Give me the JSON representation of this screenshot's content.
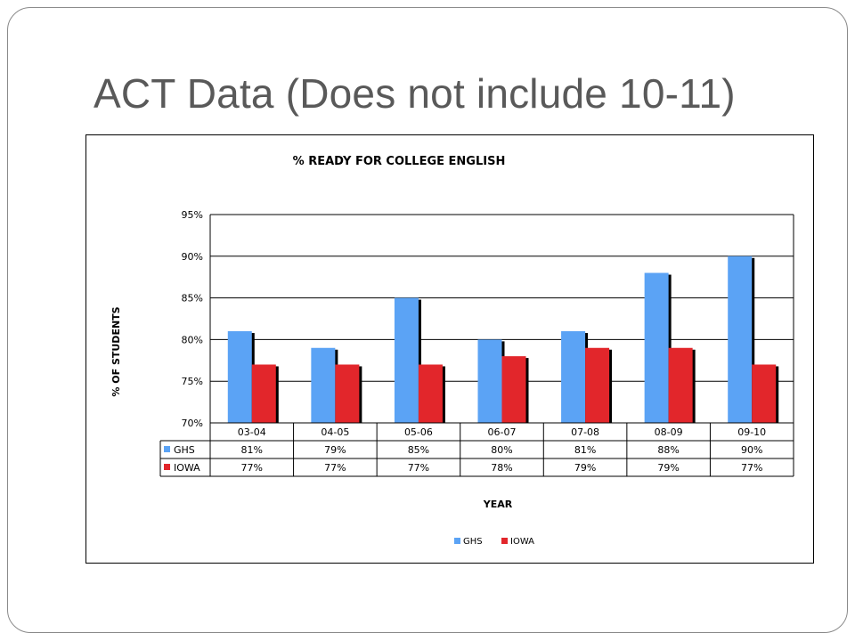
{
  "slide": {
    "title": "ACT Data (Does not include 10-11)"
  },
  "chart_data": {
    "type": "bar",
    "title": "% READY FOR COLLEGE ENGLISH",
    "xlabel": "YEAR",
    "ylabel": "% OF STUDENTS",
    "categories": [
      "03-04",
      "04-05",
      "05-06",
      "06-07",
      "07-08",
      "08-09",
      "09-10"
    ],
    "series": [
      {
        "name": "GHS",
        "values": [
          81,
          79,
          85,
          80,
          81,
          88,
          90
        ],
        "labels": [
          "81%",
          "79%",
          "85%",
          "80%",
          "81%",
          "88%",
          "90%"
        ],
        "color": "#5ba3f5"
      },
      {
        "name": "IOWA",
        "values": [
          77,
          77,
          77,
          78,
          79,
          79,
          77
        ],
        "labels": [
          "77%",
          "77%",
          "77%",
          "78%",
          "79%",
          "79%",
          "77%"
        ],
        "color": "#e2262b"
      }
    ],
    "ylim": [
      70,
      95
    ],
    "yticks": [
      70,
      75,
      80,
      85,
      90,
      95
    ],
    "ytick_labels": [
      "70%",
      "75%",
      "80%",
      "85%",
      "90%",
      "95%"
    ],
    "grid": true,
    "data_table": true,
    "legend_position": "bottom"
  }
}
